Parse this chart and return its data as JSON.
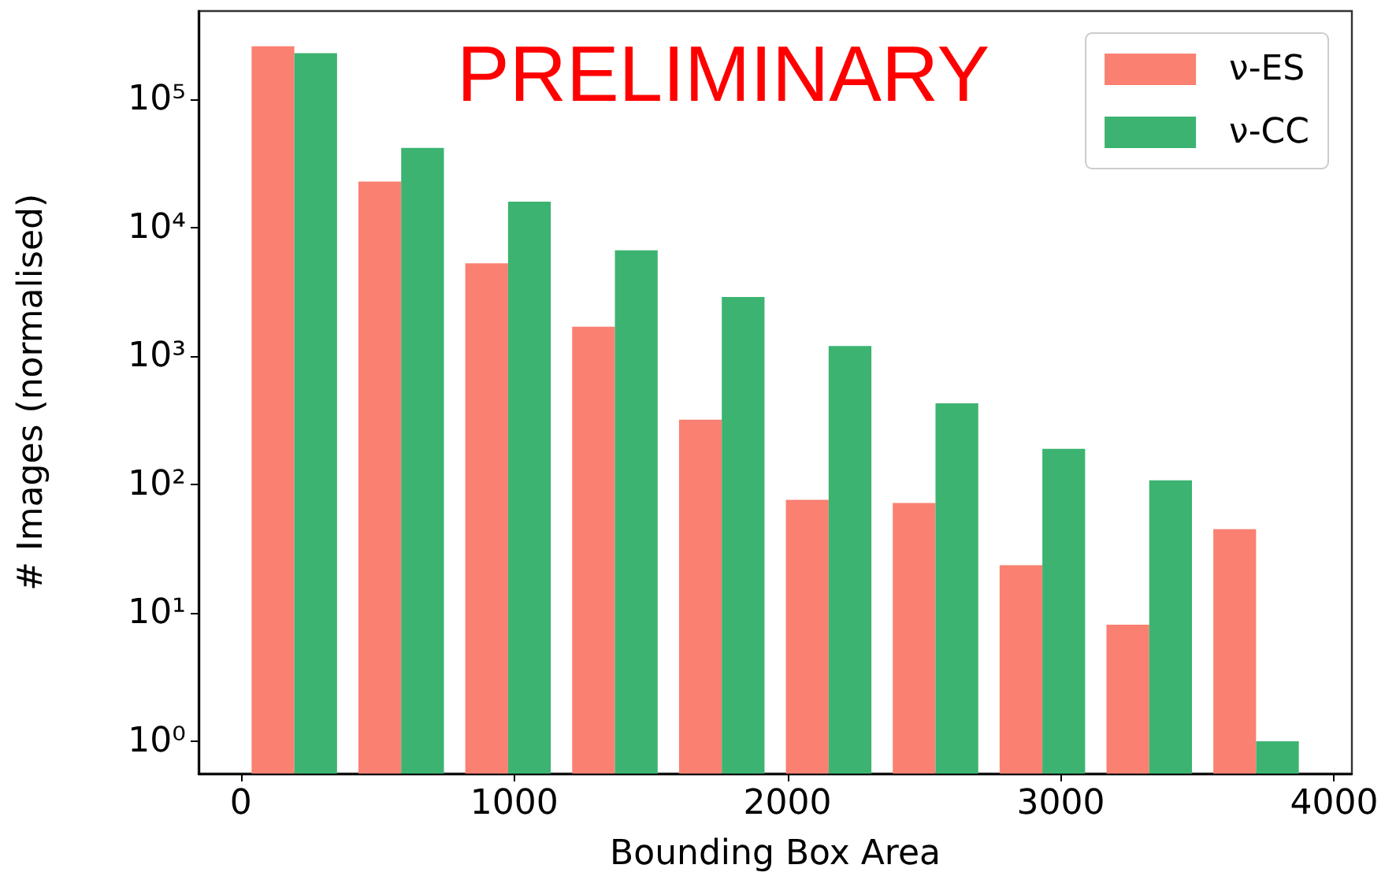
{
  "chart_data": {
    "type": "histogram",
    "xlabel": "Bounding Box Area",
    "ylabel": "# Images (normalised)",
    "annotations": [
      "PRELIMINARY"
    ],
    "bins": [
      0,
      391,
      782,
      1173,
      1564,
      1955,
      2346,
      2737,
      3128,
      3519,
      3910
    ],
    "series": [
      {
        "name": "ν-ES",
        "color": "#fa8072",
        "values": [
          260000,
          23000,
          5300,
          1700,
          320,
          76,
          72,
          23.5,
          8.1,
          45
        ]
      },
      {
        "name": "ν-CC",
        "color": "#3cb371",
        "values": [
          230000,
          42000,
          16000,
          6700,
          2900,
          1200,
          430,
          190,
          108,
          1.0
        ]
      }
    ],
    "log": "y",
    "xlim": [
      -155,
      4065
    ],
    "ylim": [
      0.56,
      490000
    ],
    "xticks": [
      0,
      1000,
      2000,
      3000,
      4000
    ],
    "yticks": [
      {
        "value": 1,
        "label": "10⁰"
      },
      {
        "value": 10,
        "label": "10¹"
      },
      {
        "value": 100,
        "label": "10²"
      },
      {
        "value": 1000,
        "label": "10³"
      },
      {
        "value": 10000,
        "label": "10⁴"
      },
      {
        "value": 100000,
        "label": "10⁵"
      }
    ],
    "grid": false,
    "legend": "top right"
  }
}
